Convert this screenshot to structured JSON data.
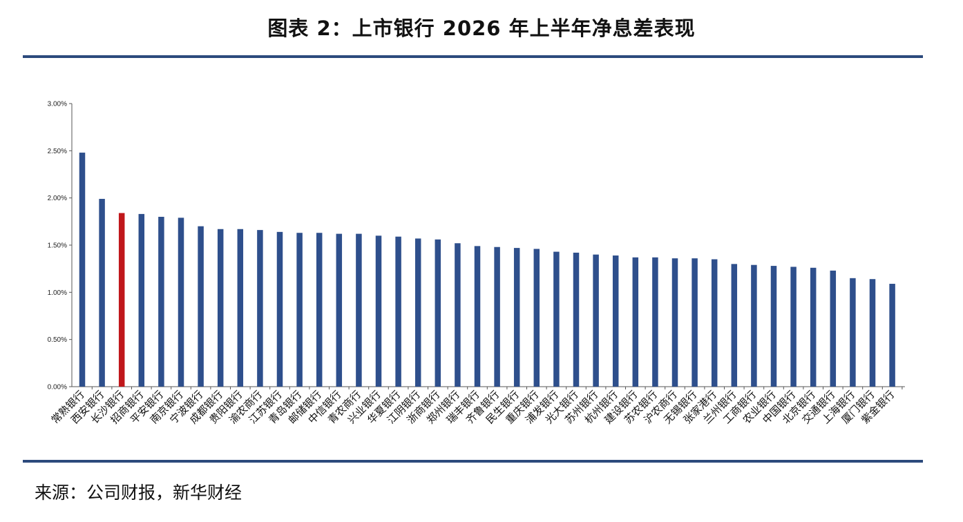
{
  "title": "图表 2：上市银行 2026 年上半年净息差表现",
  "source": "来源：公司财报，新华财经",
  "colors": {
    "bar": "#2e4f8c",
    "highlight": "#c0171b",
    "rule": "#2c4a7c",
    "axis": "#555555"
  },
  "chart_data": {
    "type": "bar",
    "title": "",
    "xlabel": "",
    "ylabel": "",
    "ylim": [
      0,
      0.03
    ],
    "yticks": [
      0,
      0.005,
      0.01,
      0.015,
      0.02,
      0.025,
      0.03
    ],
    "ytick_labels": [
      "0.00%",
      "0.50%",
      "1.00%",
      "1.50%",
      "2.00%",
      "2.50%",
      "3.00%"
    ],
    "grid": false,
    "legend": "none",
    "highlight_category": "长沙银行",
    "categories": [
      "常熟银行",
      "西安银行",
      "长沙银行",
      "招商银行",
      "平安银行",
      "南京银行",
      "宁波银行",
      "成都银行",
      "贵阳银行",
      "渝农商行",
      "江苏银行",
      "青岛银行",
      "邮储银行",
      "中信银行",
      "青农商行",
      "兴业银行",
      "华夏银行",
      "江阴银行",
      "浙商银行",
      "郑州银行",
      "瑞丰银行",
      "齐鲁银行",
      "民生银行",
      "重庆银行",
      "浦发银行",
      "光大银行",
      "苏州银行",
      "杭州银行",
      "建设银行",
      "苏农银行",
      "沪农商行",
      "无锡银行",
      "张家港行",
      "兰州银行",
      "工商银行",
      "农业银行",
      "中国银行",
      "北京银行",
      "交通银行",
      "上海银行",
      "厦门银行",
      "紫金银行"
    ],
    "values": [
      0.0248,
      0.0199,
      0.0184,
      0.0183,
      0.018,
      0.0179,
      0.017,
      0.0167,
      0.0167,
      0.0166,
      0.0164,
      0.0163,
      0.0163,
      0.0162,
      0.0162,
      0.016,
      0.0159,
      0.0157,
      0.0156,
      0.0152,
      0.0149,
      0.0148,
      0.0147,
      0.0146,
      0.0143,
      0.0142,
      0.014,
      0.0139,
      0.0137,
      0.0137,
      0.0136,
      0.0136,
      0.0135,
      0.013,
      0.0129,
      0.0128,
      0.0127,
      0.0126,
      0.0123,
      0.0115,
      0.0114,
      0.0109
    ]
  }
}
